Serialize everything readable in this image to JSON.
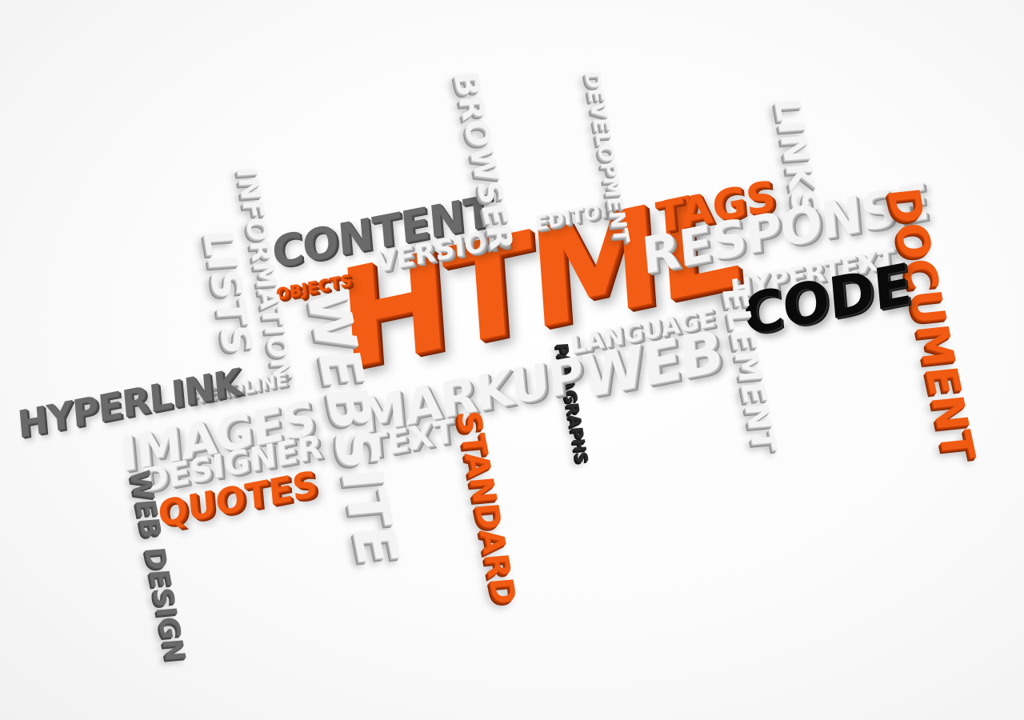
{
  "word_cloud": {
    "words": [
      {
        "id": "html",
        "text": "HTML",
        "color": "#f25c14"
      },
      {
        "id": "content",
        "text": "CONTENT",
        "color": "#6a6a6a"
      },
      {
        "id": "version",
        "text": "VERSION",
        "color": "#f4f4f4"
      },
      {
        "id": "objects",
        "text": "OBJECTS",
        "color": "#f05a12"
      },
      {
        "id": "browser",
        "text": "BROWSER",
        "color": "#f4f4f4"
      },
      {
        "id": "editor",
        "text": "EDITOR",
        "color": "#f4f4f4"
      },
      {
        "id": "development",
        "text": "DEVELOPMENT",
        "color": "#f4f4f4"
      },
      {
        "id": "tags",
        "text": "TAGS",
        "color": "#f05a12"
      },
      {
        "id": "links",
        "text": "LINKS",
        "color": "#f4f4f4"
      },
      {
        "id": "response",
        "text": "RESPONSE",
        "color": "#f4f4f4"
      },
      {
        "id": "document",
        "text": "DOCUMENT",
        "color": "#f05a12"
      },
      {
        "id": "hypertext",
        "text": "HYPERTEXT",
        "color": "#f4f4f4"
      },
      {
        "id": "code",
        "text": "CODE",
        "color": "#0a0a0a"
      },
      {
        "id": "element",
        "text": "ELEMENT",
        "color": "#f4f4f4"
      },
      {
        "id": "language",
        "text": "LANGUAGE",
        "color": "#f4f4f4"
      },
      {
        "id": "web-main",
        "text": "WEB",
        "color": "#f4f4f4"
      },
      {
        "id": "paragraphs",
        "text": "PARAGRAPHS",
        "color": "#2b2b2b"
      },
      {
        "id": "markup",
        "text": "MARKUP",
        "color": "#f4f4f4"
      },
      {
        "id": "text",
        "text": "TEXT",
        "color": "#f4f4f4"
      },
      {
        "id": "standard",
        "text": "STANDARD",
        "color": "#f05a12"
      },
      {
        "id": "website",
        "text": "WEBSITE",
        "color": "#f4f4f4"
      },
      {
        "id": "information",
        "text": "INFORMATION",
        "color": "#f4f4f4"
      },
      {
        "id": "lists",
        "text": "LISTS",
        "color": "#f4f4f4"
      },
      {
        "id": "headline",
        "text": "HEADLINE",
        "color": "#f4f4f4"
      },
      {
        "id": "hyperlink",
        "text": "HYPERLINK",
        "color": "#6a6a6a"
      },
      {
        "id": "images",
        "text": "IMAGES",
        "color": "#f4f4f4"
      },
      {
        "id": "designer",
        "text": "DESIGNER",
        "color": "#f4f4f4"
      },
      {
        "id": "quotes",
        "text": "QUOTES",
        "color": "#f05a12"
      },
      {
        "id": "web-design",
        "text": "WEB DESIGN",
        "color": "#6a6a6a"
      }
    ]
  }
}
